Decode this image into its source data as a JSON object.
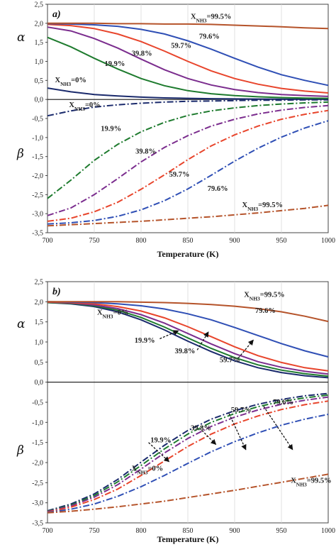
{
  "chart_data": [
    {
      "type": "line",
      "panel_label": "a)",
      "xlabel": "Temperature (K)",
      "xlim": [
        700,
        1000
      ],
      "ylim": [
        -3.5,
        2.5
      ],
      "x_ticks": [
        "700",
        "750",
        "800",
        "850",
        "900",
        "950",
        "1000"
      ],
      "y_ticks": [
        "-3,5",
        "-3,0",
        "-2,5",
        "-2,0",
        "-1,5",
        "-1,0",
        "-0,5",
        "0,0",
        "0,5",
        "1,0",
        "1,5",
        "2,0",
        "2,5"
      ],
      "upper_label": "α",
      "lower_label": "β",
      "grid": "vertical",
      "x": [
        700,
        725,
        750,
        775,
        800,
        825,
        850,
        875,
        900,
        925,
        950,
        975,
        1000
      ],
      "series": [
        {
          "name": "XNH3=0%",
          "group": "alpha",
          "style": "solid",
          "color": "#1a2a6c",
          "values": [
            0.3,
            0.2,
            0.13,
            0.09,
            0.06,
            0.04,
            0.03,
            0.02,
            0.015,
            0.01,
            0.008,
            0.006,
            0.005
          ]
        },
        {
          "name": "19.9%",
          "group": "alpha",
          "style": "solid",
          "color": "#1e7b2e",
          "values": [
            1.63,
            1.38,
            1.08,
            0.8,
            0.55,
            0.36,
            0.23,
            0.15,
            0.1,
            0.07,
            0.05,
            0.035,
            0.03
          ]
        },
        {
          "name": "39.8%",
          "group": "alpha",
          "style": "solid",
          "color": "#7b2d8e",
          "values": [
            1.9,
            1.8,
            1.6,
            1.35,
            1.06,
            0.78,
            0.55,
            0.38,
            0.26,
            0.18,
            0.13,
            0.1,
            0.08
          ]
        },
        {
          "name": "59.7%",
          "group": "alpha",
          "style": "solid",
          "color": "#e8452c",
          "values": [
            1.97,
            1.94,
            1.86,
            1.72,
            1.52,
            1.27,
            1.0,
            0.75,
            0.55,
            0.4,
            0.29,
            0.22,
            0.17
          ]
        },
        {
          "name": "79.6%",
          "group": "alpha",
          "style": "solid",
          "color": "#2f4fb5",
          "values": [
            1.99,
            1.98,
            1.96,
            1.92,
            1.84,
            1.72,
            1.54,
            1.32,
            1.08,
            0.85,
            0.65,
            0.5,
            0.37
          ]
        },
        {
          "name": "XNH3=99.5%",
          "group": "alpha",
          "style": "solid",
          "color": "#b5532a",
          "values": [
            2.0,
            2.0,
            2.0,
            1.99,
            1.99,
            1.98,
            1.98,
            1.97,
            1.95,
            1.93,
            1.91,
            1.88,
            1.86
          ]
        },
        {
          "name": "XNH3=0%",
          "group": "beta",
          "style": "dashdot",
          "color": "#1a2a6c",
          "values": [
            -0.43,
            -0.3,
            -0.2,
            -0.14,
            -0.1,
            -0.07,
            -0.05,
            -0.04,
            -0.03,
            -0.02,
            -0.02,
            -0.01,
            -0.01
          ]
        },
        {
          "name": "19.9%",
          "group": "beta",
          "style": "dashdot",
          "color": "#1e7b2e",
          "values": [
            -2.6,
            -2.12,
            -1.6,
            -1.18,
            -0.85,
            -0.6,
            -0.42,
            -0.3,
            -0.22,
            -0.16,
            -0.12,
            -0.09,
            -0.07
          ]
        },
        {
          "name": "39.8%",
          "group": "beta",
          "style": "dashdot",
          "color": "#7b2d8e",
          "values": [
            -3.05,
            -2.85,
            -2.5,
            -2.08,
            -1.64,
            -1.26,
            -0.95,
            -0.7,
            -0.52,
            -0.38,
            -0.28,
            -0.21,
            -0.16
          ]
        },
        {
          "name": "59.7%",
          "group": "beta",
          "style": "dashdot",
          "color": "#e8452c",
          "values": [
            -3.2,
            -3.12,
            -2.95,
            -2.7,
            -2.36,
            -1.98,
            -1.58,
            -1.22,
            -0.93,
            -0.7,
            -0.52,
            -0.39,
            -0.29
          ]
        },
        {
          "name": "79.6%",
          "group": "beta",
          "style": "dashdot",
          "color": "#2f4fb5",
          "values": [
            -3.27,
            -3.24,
            -3.18,
            -3.07,
            -2.9,
            -2.66,
            -2.35,
            -1.99,
            -1.62,
            -1.28,
            -0.99,
            -0.75,
            -0.56
          ]
        },
        {
          "name": "XNH3=99.5%",
          "group": "beta",
          "style": "dashdot",
          "color": "#b5532a",
          "values": [
            -3.32,
            -3.29,
            -3.26,
            -3.23,
            -3.2,
            -3.16,
            -3.12,
            -3.08,
            -3.03,
            -2.98,
            -2.92,
            -2.86,
            -2.78
          ]
        }
      ],
      "annotations": [
        {
          "text": "XNH3=99.5%",
          "x": 853,
          "y": 2.12,
          "color": "#222"
        },
        {
          "text": "79.6%",
          "x": 862,
          "y": 1.6,
          "color": "#222"
        },
        {
          "text": "59.7%",
          "x": 832,
          "y": 1.35,
          "color": "#222"
        },
        {
          "text": "39.8%",
          "x": 790,
          "y": 1.15,
          "color": "#222"
        },
        {
          "text": "19.9%",
          "x": 761,
          "y": 0.88,
          "color": "#222"
        },
        {
          "text": "XNH3=0%",
          "x": 708,
          "y": 0.45,
          "color": "#222"
        },
        {
          "text": "XNH3=0%",
          "x": 723,
          "y": -0.2,
          "color": "#222"
        },
        {
          "text": "19.9%",
          "x": 757,
          "y": -0.83,
          "color": "#222"
        },
        {
          "text": "39.8%",
          "x": 794,
          "y": -1.42,
          "color": "#222"
        },
        {
          "text": "59.7%",
          "x": 830,
          "y": -2.03,
          "color": "#222"
        },
        {
          "text": "79.6%",
          "x": 871,
          "y": -2.4,
          "color": "#222"
        },
        {
          "text": "XNH3=99.5%",
          "x": 908,
          "y": -2.83,
          "color": "#222"
        }
      ]
    },
    {
      "type": "line",
      "panel_label": "b)",
      "xlabel": "Temperature (K)",
      "xlim": [
        700,
        1000
      ],
      "ylim": [
        -3.5,
        2.5
      ],
      "x_ticks": [
        "700",
        "750",
        "800",
        "850",
        "900",
        "950",
        "1000"
      ],
      "y_ticks": [
        "-3,5",
        "-3,0",
        "-2,5",
        "-2,0",
        "-1,5",
        "-1,0",
        "-0,5",
        "0,0",
        "0,5",
        "1,0",
        "1,5",
        "2,0",
        "2,5"
      ],
      "upper_label": "α",
      "lower_label": "β",
      "grid": "vertical",
      "x": [
        700,
        725,
        750,
        775,
        800,
        825,
        850,
        875,
        900,
        925,
        950,
        975,
        1000
      ],
      "series": [
        {
          "name": "XNH3=0%",
          "group": "alpha",
          "style": "solid",
          "color": "#1a2a6c",
          "values": [
            1.98,
            1.95,
            1.88,
            1.75,
            1.55,
            1.3,
            1.02,
            0.76,
            0.53,
            0.36,
            0.24,
            0.16,
            0.11
          ]
        },
        {
          "name": "19.9%",
          "group": "alpha",
          "style": "solid",
          "color": "#1e7b2e",
          "values": [
            1.98,
            1.96,
            1.9,
            1.79,
            1.61,
            1.37,
            1.1,
            0.84,
            0.61,
            0.43,
            0.3,
            0.21,
            0.15
          ]
        },
        {
          "name": "39.8%",
          "group": "alpha",
          "style": "solid",
          "color": "#7b2d8e",
          "values": [
            1.99,
            1.97,
            1.92,
            1.83,
            1.68,
            1.47,
            1.21,
            0.95,
            0.71,
            0.51,
            0.37,
            0.27,
            0.2
          ]
        },
        {
          "name": "59.7%",
          "group": "alpha",
          "style": "solid",
          "color": "#e8452c",
          "values": [
            1.99,
            1.98,
            1.95,
            1.88,
            1.77,
            1.6,
            1.38,
            1.13,
            0.88,
            0.66,
            0.49,
            0.36,
            0.28
          ]
        },
        {
          "name": "79.6%",
          "group": "alpha",
          "style": "solid",
          "color": "#2f4fb5",
          "values": [
            2.0,
            1.99,
            1.98,
            1.95,
            1.9,
            1.82,
            1.7,
            1.55,
            1.36,
            1.16,
            0.96,
            0.78,
            0.63
          ]
        },
        {
          "name": "XNH3=99.5%",
          "group": "alpha",
          "style": "solid",
          "color": "#b5532a",
          "values": [
            2.0,
            2.0,
            2.0,
            2.0,
            1.99,
            1.98,
            1.96,
            1.93,
            1.89,
            1.83,
            1.75,
            1.64,
            1.51
          ]
        },
        {
          "name": "XNH3=0%",
          "group": "beta",
          "style": "dashdot",
          "color": "#1a2a6c",
          "values": [
            -3.2,
            -3.03,
            -2.78,
            -2.42,
            -1.99,
            -1.57,
            -1.2,
            -0.92,
            -0.71,
            -0.55,
            -0.43,
            -0.34,
            -0.28
          ]
        },
        {
          "name": "19.9%",
          "group": "beta",
          "style": "dashdot",
          "color": "#1e7b2e",
          "values": [
            -3.21,
            -3.06,
            -2.82,
            -2.48,
            -2.07,
            -1.66,
            -1.29,
            -1.0,
            -0.78,
            -0.61,
            -0.48,
            -0.39,
            -0.32
          ]
        },
        {
          "name": "39.8%",
          "group": "beta",
          "style": "dashdot",
          "color": "#7b2d8e",
          "values": [
            -3.22,
            -3.08,
            -2.86,
            -2.55,
            -2.16,
            -1.76,
            -1.4,
            -1.1,
            -0.87,
            -0.69,
            -0.55,
            -0.45,
            -0.37
          ]
        },
        {
          "name": "59.7%",
          "group": "beta",
          "style": "dashdot",
          "color": "#e8452c",
          "values": [
            -3.23,
            -3.11,
            -2.92,
            -2.66,
            -2.32,
            -1.96,
            -1.6,
            -1.29,
            -1.04,
            -0.84,
            -0.68,
            -0.56,
            -0.47
          ]
        },
        {
          "name": "79.6%",
          "group": "beta",
          "style": "dashdot",
          "color": "#2f4fb5",
          "values": [
            -3.24,
            -3.16,
            -3.03,
            -2.84,
            -2.6,
            -2.32,
            -2.02,
            -1.73,
            -1.48,
            -1.26,
            -1.07,
            -0.92,
            -0.8
          ]
        },
        {
          "name": "XNH3=99.5%",
          "group": "beta",
          "style": "dashdot",
          "color": "#b5532a",
          "values": [
            -3.25,
            -3.21,
            -3.16,
            -3.1,
            -3.03,
            -2.96,
            -2.87,
            -2.78,
            -2.69,
            -2.59,
            -2.49,
            -2.39,
            -2.29
          ]
        }
      ],
      "annotations": [
        {
          "text": "XNH3=99.5%",
          "x": 910,
          "y": 2.12,
          "color": "#222"
        },
        {
          "text": "79.6%",
          "x": 922,
          "y": 1.72,
          "color": "#222"
        },
        {
          "text": "XNH3=0%",
          "x": 753,
          "y": 1.68,
          "color": "#222"
        },
        {
          "text": "19.9%",
          "x": 793,
          "y": 0.98,
          "color": "#222"
        },
        {
          "text": "39.8%",
          "x": 836,
          "y": 0.72,
          "color": "#222"
        },
        {
          "text": "59.7%",
          "x": 884,
          "y": 0.5,
          "color": "#222"
        },
        {
          "text": "79.6%",
          "x": 941,
          "y": -0.55,
          "color": "#222"
        },
        {
          "text": "59.7%",
          "x": 896,
          "y": -0.75,
          "color": "#222"
        },
        {
          "text": "39.8%",
          "x": 853,
          "y": -1.2,
          "color": "#222"
        },
        {
          "text": "19.9%",
          "x": 810,
          "y": -1.5,
          "color": "#222"
        },
        {
          "text": "XNH3=0%",
          "x": 790,
          "y": -2.2,
          "color": "#222"
        },
        {
          "text": "XNH3=99.5%",
          "x": 960,
          "y": -2.5,
          "color": "#222"
        }
      ],
      "arrows": [
        {
          "from": [
            820,
            1.08
          ],
          "to": [
            840,
            1.28
          ]
        },
        {
          "from": [
            860,
            0.8
          ],
          "to": [
            872,
            1.25
          ]
        },
        {
          "from": [
            904,
            0.6
          ],
          "to": [
            920,
            1.05
          ]
        },
        {
          "from": [
            808,
            -1.5
          ],
          "to": [
            830,
            -1.98
          ]
        },
        {
          "from": [
            865,
            -1.2
          ],
          "to": [
            880,
            -1.55
          ]
        },
        {
          "from": [
            894,
            -0.78
          ],
          "to": [
            912,
            -1.68
          ]
        },
        {
          "from": [
            931,
            -0.6
          ],
          "to": [
            962,
            -1.68
          ]
        }
      ]
    }
  ]
}
